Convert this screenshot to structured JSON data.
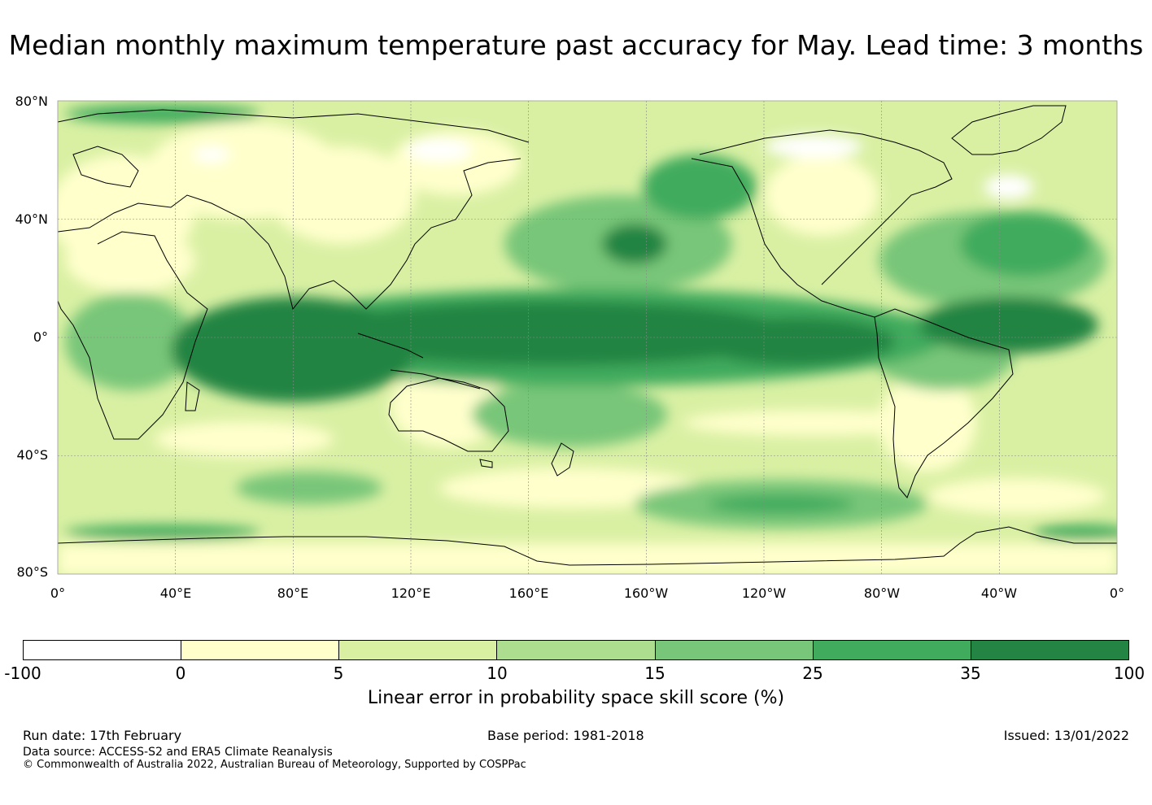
{
  "title": "Median monthly maximum temperature past accuracy for May. Lead time: 3 months",
  "map": {
    "lat_labels": [
      "80°N",
      "40°N",
      "0°",
      "40°S",
      "80°S"
    ],
    "lon_labels": [
      "0°",
      "40°E",
      "80°E",
      "120°E",
      "160°E",
      "160°W",
      "120°W",
      "80°W",
      "40°W",
      "0°"
    ]
  },
  "colorbar": {
    "colors": [
      "#ffffff",
      "#ffffcc",
      "#d9f0a3",
      "#addd8e",
      "#78c679",
      "#41ab5d",
      "#238443"
    ],
    "ticks": [
      "-100",
      "0",
      "5",
      "10",
      "15",
      "25",
      "35",
      "100"
    ],
    "label": "Linear error in probability space skill score (%)"
  },
  "footer": {
    "run_date": "Run date: 17th February",
    "base_period": "Base period: 1981-2018",
    "issued": "Issued: 13/01/2022",
    "data_source": "Data source: ACCESS-S2 and ERA5 Climate Reanalysis",
    "copyright": "© Commonwealth of Australia 2022, Australian Bureau of Meteorology, Supported by COSPPac"
  }
}
